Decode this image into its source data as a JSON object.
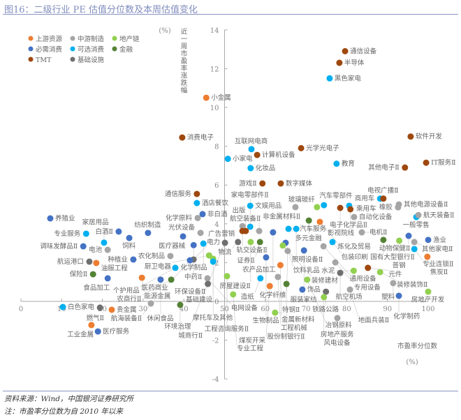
{
  "title": "图16：二级行业 PE 估值分位数及本周估值变化",
  "source": "资料来源：Wind，中国银河证券研究所",
  "note": "注：市盈率分位数为自 2010 年以来",
  "chart_data": {
    "type": "scatter",
    "xlabel": "市盈率分位数",
    "xunit": "(%)",
    "ylabel": "近一周市盈率涨跌幅",
    "yunit": "(%)",
    "xlim": [
      0,
      100
    ],
    "ylim": [
      -4,
      14
    ],
    "xticks": [
      0,
      10,
      20,
      30,
      40,
      50,
      60,
      70,
      80,
      90,
      100
    ],
    "yticks": [
      -4,
      -2,
      0,
      2,
      4,
      6,
      8,
      10,
      12,
      14
    ],
    "axis_cross": {
      "x": 50,
      "y": 0
    },
    "legend_position": "top-left",
    "groups": [
      {
        "name": "上游资源",
        "color": "#ED7D31"
      },
      {
        "name": "中游制造",
        "color": "#A5A5A5"
      },
      {
        "name": "地产链",
        "color": "#92D050"
      },
      {
        "name": "必需消费",
        "color": "#4472C4"
      },
      {
        "name": "可选消费",
        "color": "#00B0F0"
      },
      {
        "name": "金融",
        "color": "#548235"
      },
      {
        "name": "TMT",
        "color": "#9E480E"
      },
      {
        "name": "基础设施",
        "color": "#6F6F6F"
      }
    ],
    "points": [
      {
        "name": "通信设备",
        "group": 6,
        "x": 79.6,
        "y": 12.9
      },
      {
        "name": "半导体",
        "group": 6,
        "x": 78.2,
        "y": 12.3
      },
      {
        "name": "黑色家电",
        "group": 4,
        "x": 75.8,
        "y": 11.5
      },
      {
        "name": "小金属",
        "group": 0,
        "x": 45.5,
        "y": 10.5
      },
      {
        "name": "消费电子",
        "group": 6,
        "x": 39.6,
        "y": 8.45
      },
      {
        "name": "软件开发",
        "group": 6,
        "x": 95.7,
        "y": 8.5
      },
      {
        "name": "互联网电商",
        "group": 4,
        "x": 56.6,
        "y": 7.85
      },
      {
        "name": "光学光电子",
        "group": 6,
        "x": 68.8,
        "y": 7.9
      },
      {
        "name": "计算机设备",
        "group": 6,
        "x": 58.0,
        "y": 7.55
      },
      {
        "name": "小家电",
        "group": 4,
        "x": 50.8,
        "y": 7.35
      },
      {
        "name": "IT服务Ⅱ",
        "group": 6,
        "x": 99.5,
        "y": 7.15
      },
      {
        "name": "教育",
        "group": 4,
        "x": 77.5,
        "y": 7.1
      },
      {
        "name": "其他电子Ⅱ",
        "group": 6,
        "x": 94.3,
        "y": 6.9
      },
      {
        "name": "化妆品",
        "group": 4,
        "x": 56.4,
        "y": 6.87
      },
      {
        "name": "游戏Ⅱ",
        "group": 6,
        "x": 59.3,
        "y": 6.08
      },
      {
        "name": "数字媒体",
        "group": 6,
        "x": 63.8,
        "y": 6.08
      },
      {
        "name": "通信服务",
        "group": 6,
        "x": 43.2,
        "y": 5.54
      },
      {
        "name": "酒店餐饮",
        "group": 4,
        "x": 43.2,
        "y": 5.07
      },
      {
        "name": "商用车",
        "group": 4,
        "x": 88.2,
        "y": 5.3
      },
      {
        "name": "电视广播Ⅱ",
        "group": 6,
        "x": 89.0,
        "y": 5.3
      },
      {
        "name": "其他电源设备Ⅱ",
        "group": 1,
        "x": 92.8,
        "y": 5.0
      },
      {
        "name": "橡胶",
        "group": 1,
        "x": 92.6,
        "y": 4.85
      },
      {
        "name": "文娱用品",
        "group": 4,
        "x": 56.3,
        "y": 4.93
      },
      {
        "name": "非金属材料Ⅱ",
        "group": 1,
        "x": 67.4,
        "y": 4.86
      },
      {
        "name": "玻璃玻纤",
        "group": 2,
        "x": 72.7,
        "y": 4.86
      },
      {
        "name": "汽车零部件",
        "group": 4,
        "x": 74.4,
        "y": 4.96
      },
      {
        "name": "乘用车",
        "group": 4,
        "x": 80.6,
        "y": 4.93
      },
      {
        "name": "电子化学品Ⅱ",
        "group": 6,
        "x": 78.4,
        "y": 4.82
      },
      {
        "name": "影视院线",
        "group": 6,
        "x": 80.9,
        "y": 4.75
      },
      {
        "name": "自动化设备",
        "group": 1,
        "x": 81.8,
        "y": 4.35
      },
      {
        "name": "一般零售",
        "group": 4,
        "x": 97.1,
        "y": 4.35
      },
      {
        "name": "航天装备Ⅱ",
        "group": 1,
        "x": 97.6,
        "y": 4.45
      },
      {
        "name": "多元金融",
        "group": 5,
        "x": 70.7,
        "y": 4.17
      },
      {
        "name": "炼化及贸易",
        "group": 0,
        "x": 73.4,
        "y": 4.1
      },
      {
        "name": "非白酒",
        "group": 3,
        "x": 44.6,
        "y": 4.5
      },
      {
        "name": "养殖业",
        "group": 3,
        "x": 7.2,
        "y": 4.28
      },
      {
        "name": "化学原料",
        "group": 1,
        "x": 43.4,
        "y": 4.3
      },
      {
        "name": "轨交设备Ⅱ",
        "group": 1,
        "x": 54.4,
        "y": 3.88
      },
      {
        "name": "家电零部件Ⅱ",
        "group": 4,
        "x": 56.3,
        "y": 3.85
      },
      {
        "name": "汽车服务",
        "group": 4,
        "x": 65.7,
        "y": 3.74
      },
      {
        "name": "照明设备Ⅱ",
        "group": 4,
        "x": 67.6,
        "y": 3.74
      },
      {
        "name": "航空装备Ⅱ",
        "group": 1,
        "x": 58.5,
        "y": 3.63
      },
      {
        "name": "广告营销",
        "group": 6,
        "x": 54.4,
        "y": 3.63
      },
      {
        "name": "出版",
        "group": 6,
        "x": 55.2,
        "y": 3.63
      },
      {
        "name": "农产品加工",
        "group": 3,
        "x": 61.9,
        "y": 3.56
      },
      {
        "name": "电机Ⅱ",
        "group": 1,
        "x": 83.7,
        "y": 3.56
      },
      {
        "name": "专业服务",
        "group": 4,
        "x": 16.0,
        "y": 3.49
      },
      {
        "name": "白酒Ⅱ",
        "group": 3,
        "x": 24.0,
        "y": 3.6
      },
      {
        "name": "纺织制造",
        "group": 3,
        "x": 31.2,
        "y": 3.53
      },
      {
        "name": "光伏设备",
        "group": 1,
        "x": 44.1,
        "y": 3.53
      },
      {
        "name": "医疗器械",
        "group": 3,
        "x": 39.8,
        "y": 3.35
      },
      {
        "name": "动物保健Ⅱ",
        "group": 3,
        "x": 95.2,
        "y": 3.38
      },
      {
        "name": "饲料",
        "group": 3,
        "x": 26.6,
        "y": 3.27
      },
      {
        "name": "渔业",
        "group": 3,
        "x": 100.0,
        "y": 3.17
      },
      {
        "name": "国有大型银行Ⅱ",
        "group": 5,
        "x": 89.0,
        "y": 3.17
      },
      {
        "name": "普钢",
        "group": 2,
        "x": 92.9,
        "y": 3.13
      },
      {
        "name": "其他家电Ⅱ",
        "group": 1,
        "x": 96.6,
        "y": 3.06
      },
      {
        "name": "物流",
        "group": 7,
        "x": 53.3,
        "y": 3.06
      },
      {
        "name": "房屋建设Ⅱ",
        "group": 2,
        "x": 56.4,
        "y": 3.06
      },
      {
        "name": "证券Ⅱ",
        "group": 5,
        "x": 58.7,
        "y": 3.06
      },
      {
        "name": "包装印刷",
        "group": 4,
        "x": 76.5,
        "y": 3.06
      },
      {
        "name": "家居用品",
        "group": 4,
        "x": 20.4,
        "y": 3.03
      },
      {
        "name": "环保设备Ⅱ",
        "group": 7,
        "x": 50.1,
        "y": 3.02
      },
      {
        "name": "饮料乳品",
        "group": 3,
        "x": 65.0,
        "y": 3.02
      },
      {
        "name": "化学制品",
        "group": 4,
        "x": 44.8,
        "y": 2.98
      },
      {
        "name": "中药Ⅱ",
        "group": 3,
        "x": 42.4,
        "y": 2.9
      },
      {
        "name": "装修建材",
        "group": 2,
        "x": 64.3,
        "y": 2.88
      },
      {
        "name": "调味发酵品Ⅱ",
        "group": 3,
        "x": 15.3,
        "y": 2.84
      },
      {
        "name": "通用设备",
        "group": 1,
        "x": 74.3,
        "y": 2.84
      },
      {
        "name": "专业连锁Ⅱ",
        "group": 4,
        "x": 96.6,
        "y": 2.7
      },
      {
        "name": "电池",
        "group": 1,
        "x": 21.3,
        "y": 2.66
      },
      {
        "name": "服装家纺",
        "group": 3,
        "x": 69.5,
        "y": 2.63
      },
      {
        "name": "化学纤维",
        "group": 1,
        "x": 65.5,
        "y": 2.6
      },
      {
        "name": "厨卫电器",
        "group": 2,
        "x": 46.2,
        "y": 2.37
      },
      {
        "name": "农化制品",
        "group": 1,
        "x": 36.7,
        "y": 2.34
      },
      {
        "name": "焦炭Ⅱ",
        "group": 0,
        "x": 99.8,
        "y": 2.3
      },
      {
        "name": "生物制品",
        "group": 3,
        "x": 60.2,
        "y": 2.27
      },
      {
        "name": "种植业",
        "group": 3,
        "x": 27.6,
        "y": 2.16
      },
      {
        "name": "电力",
        "group": 7,
        "x": 42.4,
        "y": 2.16
      },
      {
        "name": "医药商业",
        "group": 3,
        "x": 41.5,
        "y": 2.12
      },
      {
        "name": "基础建设",
        "group": 2,
        "x": 47.2,
        "y": 2.2
      },
      {
        "name": "摩托车及其他",
        "group": 4,
        "x": 47.2,
        "y": 2.05
      },
      {
        "name": "航运港口",
        "group": 7,
        "x": 16.8,
        "y": 2.05
      },
      {
        "name": "专用设备",
        "group": 1,
        "x": 77.2,
        "y": 2.01
      },
      {
        "name": "油服工程",
        "group": 0,
        "x": 18.5,
        "y": 1.98
      },
      {
        "name": "金属新材料",
        "group": 0,
        "x": 63.7,
        "y": 1.87
      },
      {
        "name": "个护用品",
        "group": 4,
        "x": 37.9,
        "y": 1.73
      },
      {
        "name": "元件",
        "group": 6,
        "x": 85.2,
        "y": 1.73
      },
      {
        "name": "水泥",
        "group": 2,
        "x": 81.7,
        "y": 1.58
      },
      {
        "name": "装修装饰Ⅱ",
        "group": 2,
        "x": 88.2,
        "y": 1.51
      },
      {
        "name": "航空机场",
        "group": 7,
        "x": 78.4,
        "y": 1.47
      },
      {
        "name": "保险Ⅱ",
        "group": 5,
        "x": 17.7,
        "y": 1.4
      },
      {
        "name": "工程咨询服务Ⅱ",
        "group": 2,
        "x": 50.6,
        "y": 1.3
      },
      {
        "name": "工程机械",
        "group": 1,
        "x": 63.1,
        "y": 1.26
      },
      {
        "name": "能源金属",
        "group": 0,
        "x": 29.7,
        "y": 1.22
      },
      {
        "name": "食品加工",
        "group": 3,
        "x": 21.3,
        "y": 1.19
      },
      {
        "name": "电网设备",
        "group": 1,
        "x": 45.8,
        "y": 1.19
      },
      {
        "name": "造纸",
        "group": 4,
        "x": 58.8,
        "y": 1.19
      },
      {
        "name": "休闲食品",
        "group": 3,
        "x": 34.3,
        "y": 1.12
      },
      {
        "name": "农商行Ⅱ",
        "group": 5,
        "x": 36.9,
        "y": 1.12
      },
      {
        "name": "冶钢原料",
        "group": 2,
        "x": 70.3,
        "y": 1.12
      },
      {
        "name": "塑料",
        "group": 1,
        "x": 91.4,
        "y": 0.94
      },
      {
        "name": "环境治理",
        "group": 7,
        "x": 45.9,
        "y": 0.9
      },
      {
        "name": "股份制银行Ⅱ",
        "group": 5,
        "x": 65.2,
        "y": 0.9
      },
      {
        "name": "煤炭开采",
        "group": 0,
        "x": 61.1,
        "y": 0.79
      },
      {
        "name": "地面兵装Ⅱ",
        "group": 1,
        "x": 80.8,
        "y": 0.61
      },
      {
        "name": "饰品",
        "group": 3,
        "x": 69.1,
        "y": 0.61
      },
      {
        "name": "铁路公路",
        "group": 7,
        "x": 74.9,
        "y": 0.5
      },
      {
        "name": "房地产开发",
        "group": 2,
        "x": 100.0,
        "y": 0.5
      },
      {
        "name": "专业工程",
        "group": 2,
        "x": 52.1,
        "y": 0.36
      },
      {
        "name": "化学制药",
        "group": 3,
        "x": 92.8,
        "y": 0.29
      },
      {
        "name": "房地产服务",
        "group": 2,
        "x": 74.4,
        "y": 0.22
      },
      {
        "name": "航海装备Ⅱ",
        "group": 1,
        "x": 31.9,
        "y": -0.11
      },
      {
        "name": "城商行Ⅱ",
        "group": 5,
        "x": 39.1,
        "y": -0.18
      },
      {
        "name": "白色家电",
        "group": 4,
        "x": 10.3,
        "y": -0.29
      },
      {
        "name": "燃气Ⅱ",
        "group": 7,
        "x": 19.4,
        "y": -0.32
      },
      {
        "name": "贵金属",
        "group": 0,
        "x": 22.3,
        "y": -0.43
      },
      {
        "name": "特钢Ⅱ",
        "group": 2,
        "x": 62.4,
        "y": -0.58
      },
      {
        "name": "风电设备",
        "group": 1,
        "x": 77.7,
        "y": -0.86
      },
      {
        "name": "工业金属",
        "group": 0,
        "x": 17.3,
        "y": -1.22
      },
      {
        "name": "医疗服务",
        "group": 3,
        "x": 18.9,
        "y": -1.55
      }
    ]
  }
}
